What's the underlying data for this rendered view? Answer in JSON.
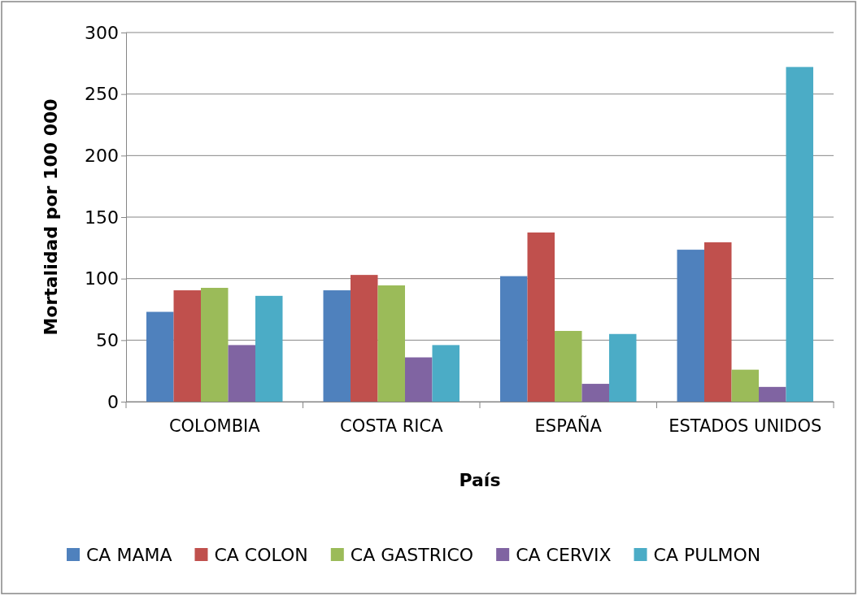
{
  "chart_data": {
    "type": "bar",
    "xlabel": "País",
    "ylabel": "Mortalidad por 100 000",
    "categories": [
      "COLOMBIA",
      "COSTA RICA",
      "ESPAÑA",
      "ESTADOS UNIDOS"
    ],
    "series": [
      {
        "name": "CA MAMA",
        "color": "#4f81bd",
        "values": [
          73,
          90.5,
          102,
          123.5
        ]
      },
      {
        "name": "CA COLON",
        "color": "#c0504d",
        "values": [
          90.5,
          103,
          137.5,
          129.5
        ]
      },
      {
        "name": "CA GASTRICO",
        "color": "#9bbb59",
        "values": [
          92.5,
          94.5,
          57.5,
          26
        ]
      },
      {
        "name": "CA CERVIX",
        "color": "#8064a2",
        "values": [
          46,
          36,
          14.5,
          12
        ]
      },
      {
        "name": "CA PULMON",
        "color": "#4bacc6",
        "values": [
          86,
          46,
          55,
          272
        ]
      }
    ],
    "ylim": [
      0,
      300
    ],
    "yticks": [
      0,
      50,
      100,
      150,
      200,
      250,
      300
    ],
    "grid": "y",
    "legend": "bottom"
  }
}
